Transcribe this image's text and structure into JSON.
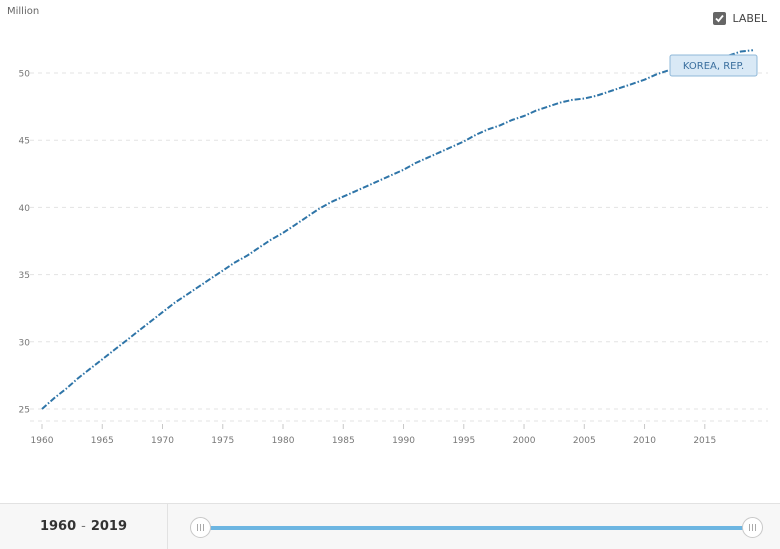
{
  "chart_data": {
    "type": "line",
    "unit_label": "Million",
    "x": [
      1960,
      1961,
      1962,
      1963,
      1964,
      1965,
      1966,
      1967,
      1968,
      1969,
      1970,
      1971,
      1972,
      1973,
      1974,
      1975,
      1976,
      1977,
      1978,
      1979,
      1980,
      1981,
      1982,
      1983,
      1984,
      1985,
      1986,
      1987,
      1988,
      1989,
      1990,
      1991,
      1992,
      1993,
      1994,
      1995,
      1996,
      1997,
      1998,
      1999,
      2000,
      2001,
      2002,
      2003,
      2004,
      2005,
      2006,
      2007,
      2008,
      2009,
      2010,
      2011,
      2012,
      2013,
      2014,
      2015,
      2016,
      2017,
      2018,
      2019
    ],
    "series": [
      {
        "name": "KOREA, REP.",
        "color": "#2f75a8",
        "values": [
          25.0,
          25.8,
          26.5,
          27.3,
          28.0,
          28.7,
          29.4,
          30.1,
          30.8,
          31.5,
          32.2,
          32.9,
          33.5,
          34.1,
          34.7,
          35.3,
          35.9,
          36.4,
          37.0,
          37.6,
          38.1,
          38.7,
          39.3,
          39.9,
          40.4,
          40.8,
          41.2,
          41.6,
          42.0,
          42.4,
          42.8,
          43.3,
          43.7,
          44.1,
          44.5,
          44.9,
          45.4,
          45.8,
          46.1,
          46.5,
          46.8,
          47.2,
          47.5,
          47.8,
          48.0,
          48.1,
          48.3,
          48.6,
          48.9,
          49.2,
          49.5,
          49.9,
          50.2,
          50.4,
          50.7,
          50.9,
          51.1,
          51.3,
          51.6,
          51.7
        ]
      }
    ],
    "ylim": [
      24,
      52
    ],
    "yticks": [
      25,
      30,
      35,
      40,
      45,
      50
    ],
    "xlim": [
      1959.4,
      2019.3
    ],
    "xticks": [
      1960,
      1965,
      1970,
      1975,
      1980,
      1985,
      1990,
      1995,
      2000,
      2005,
      2010,
      2015
    ],
    "grid": "horizontal dashed",
    "series_label": "KOREA, REP.",
    "series_label_at_year": 2013
  },
  "controls": {
    "label_toggle": "LABEL",
    "label_checked": true,
    "range_start": "1960",
    "range_separator": "-",
    "range_end": "2019"
  }
}
